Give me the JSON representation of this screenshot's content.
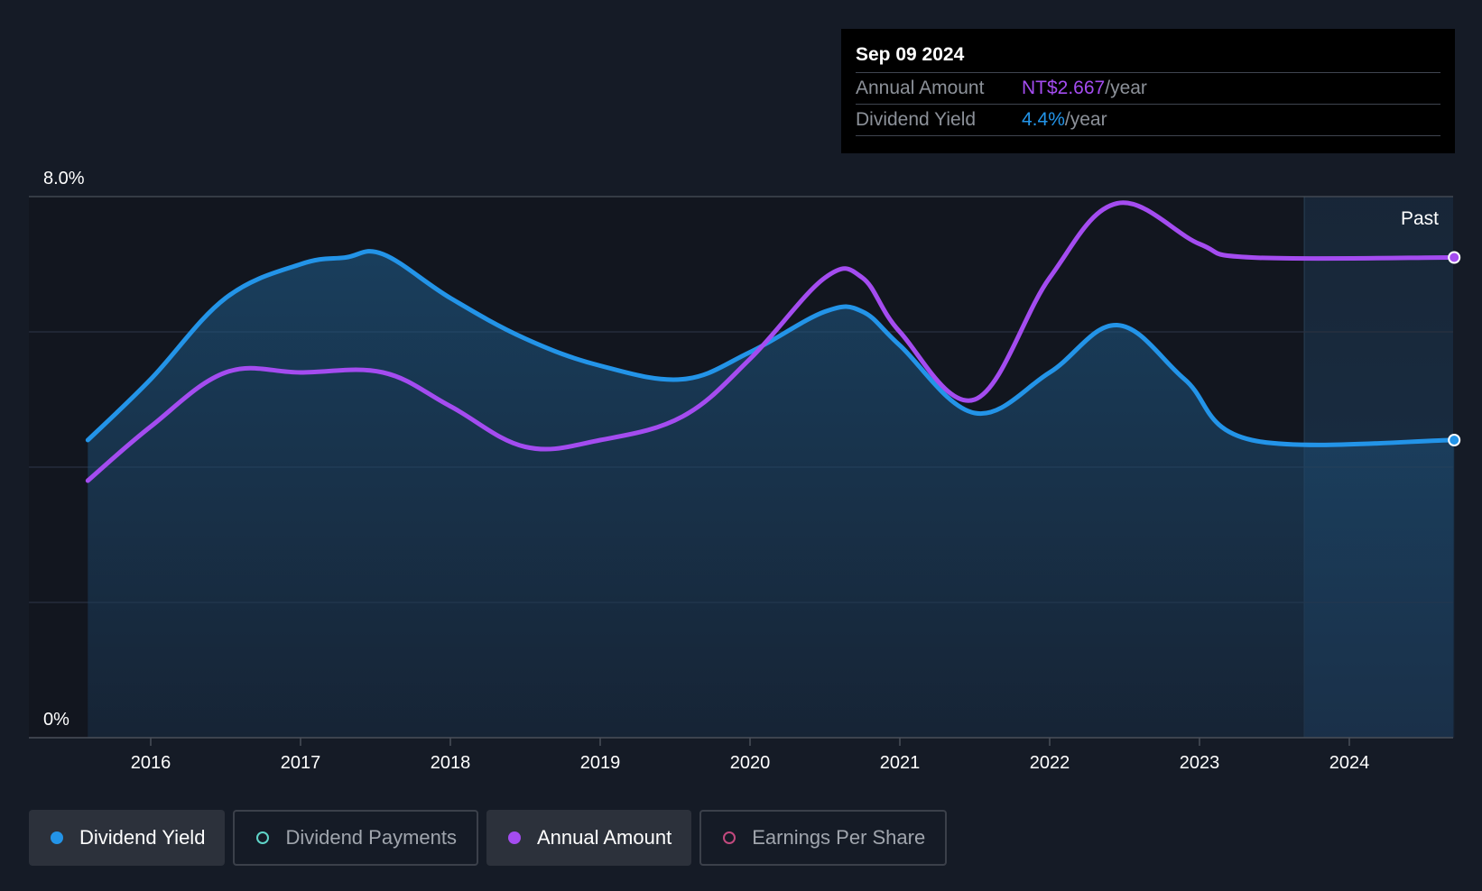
{
  "tooltip": {
    "date": "Sep 09 2024",
    "annual_label": "Annual Amount",
    "annual_value": "NT$2.667",
    "annual_unit": "/year",
    "yield_label": "Dividend Yield",
    "yield_value": "4.4%",
    "yield_unit": "/year"
  },
  "colors": {
    "yield": "#2394e8",
    "annual": "#a44cf0",
    "payments": "#5fd4c8",
    "eps": "#c2497e",
    "background": "#151b26"
  },
  "legend": [
    {
      "label": "Dividend Yield",
      "active": true,
      "color": "#2394e8",
      "filled": true
    },
    {
      "label": "Dividend Payments",
      "active": false,
      "color": "#5fd4c8",
      "filled": false
    },
    {
      "label": "Annual Amount",
      "active": true,
      "color": "#a44cf0",
      "filled": true
    },
    {
      "label": "Earnings Per Share",
      "active": false,
      "color": "#c2497e",
      "filled": false
    }
  ],
  "chart_data": {
    "type": "line",
    "ylim": [
      0,
      8
    ],
    "y_tick_labels": [
      "8.0%",
      "0%"
    ],
    "x_tick_labels": [
      "2016",
      "2017",
      "2018",
      "2019",
      "2020",
      "2021",
      "2022",
      "2023",
      "2024"
    ],
    "xlim": [
      2015.2,
      2024.7
    ],
    "past_label": "Past",
    "past_start": 2023.7,
    "grid": true,
    "series": [
      {
        "name": "Dividend Yield",
        "color": "#2394e8",
        "filled": true,
        "points": [
          [
            2015.58,
            4.4
          ],
          [
            2016.0,
            5.3
          ],
          [
            2016.5,
            6.5
          ],
          [
            2017.0,
            7.0
          ],
          [
            2017.3,
            7.1
          ],
          [
            2017.55,
            7.15
          ],
          [
            2018.0,
            6.5
          ],
          [
            2018.5,
            5.9
          ],
          [
            2019.0,
            5.5
          ],
          [
            2019.55,
            5.3
          ],
          [
            2020.0,
            5.7
          ],
          [
            2020.5,
            6.3
          ],
          [
            2020.75,
            6.3
          ],
          [
            2021.0,
            5.8
          ],
          [
            2021.5,
            4.8
          ],
          [
            2022.0,
            5.4
          ],
          [
            2022.45,
            6.1
          ],
          [
            2022.9,
            5.3
          ],
          [
            2023.35,
            4.4
          ],
          [
            2024.7,
            4.4
          ]
        ]
      },
      {
        "name": "Annual Amount",
        "color": "#a44cf0",
        "filled": false,
        "points": [
          [
            2015.58,
            3.8
          ],
          [
            2016.0,
            4.6
          ],
          [
            2016.5,
            5.4
          ],
          [
            2017.0,
            5.4
          ],
          [
            2017.55,
            5.4
          ],
          [
            2018.0,
            4.9
          ],
          [
            2018.5,
            4.3
          ],
          [
            2019.0,
            4.4
          ],
          [
            2019.55,
            4.75
          ],
          [
            2020.0,
            5.6
          ],
          [
            2020.5,
            6.8
          ],
          [
            2020.75,
            6.8
          ],
          [
            2021.0,
            6.0
          ],
          [
            2021.5,
            5.0
          ],
          [
            2022.0,
            6.8
          ],
          [
            2022.45,
            7.9
          ],
          [
            2023.0,
            7.3
          ],
          [
            2023.35,
            7.1
          ],
          [
            2024.7,
            7.1
          ]
        ]
      }
    ]
  }
}
